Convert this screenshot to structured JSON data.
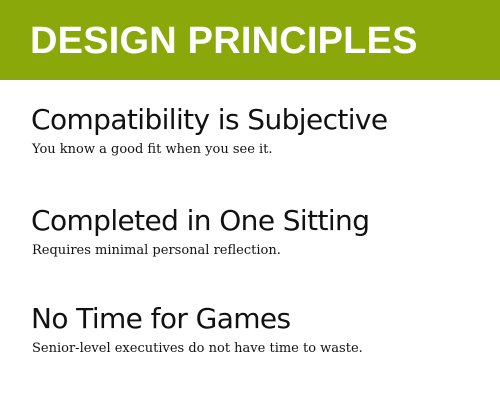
{
  "banner": {
    "title": "DESIGN PRINCIPLES",
    "background_color": "#8aa80a",
    "text_color": "#ffffff"
  },
  "principles": [
    {
      "heading": "Compatibility is Subjective",
      "description": "You know a good fit when you see it."
    },
    {
      "heading": "Completed in One Sitting",
      "description": "Requires minimal personal reflection."
    },
    {
      "heading": "No Time for Games",
      "description": "Senior-level executives do not have time to waste."
    }
  ]
}
